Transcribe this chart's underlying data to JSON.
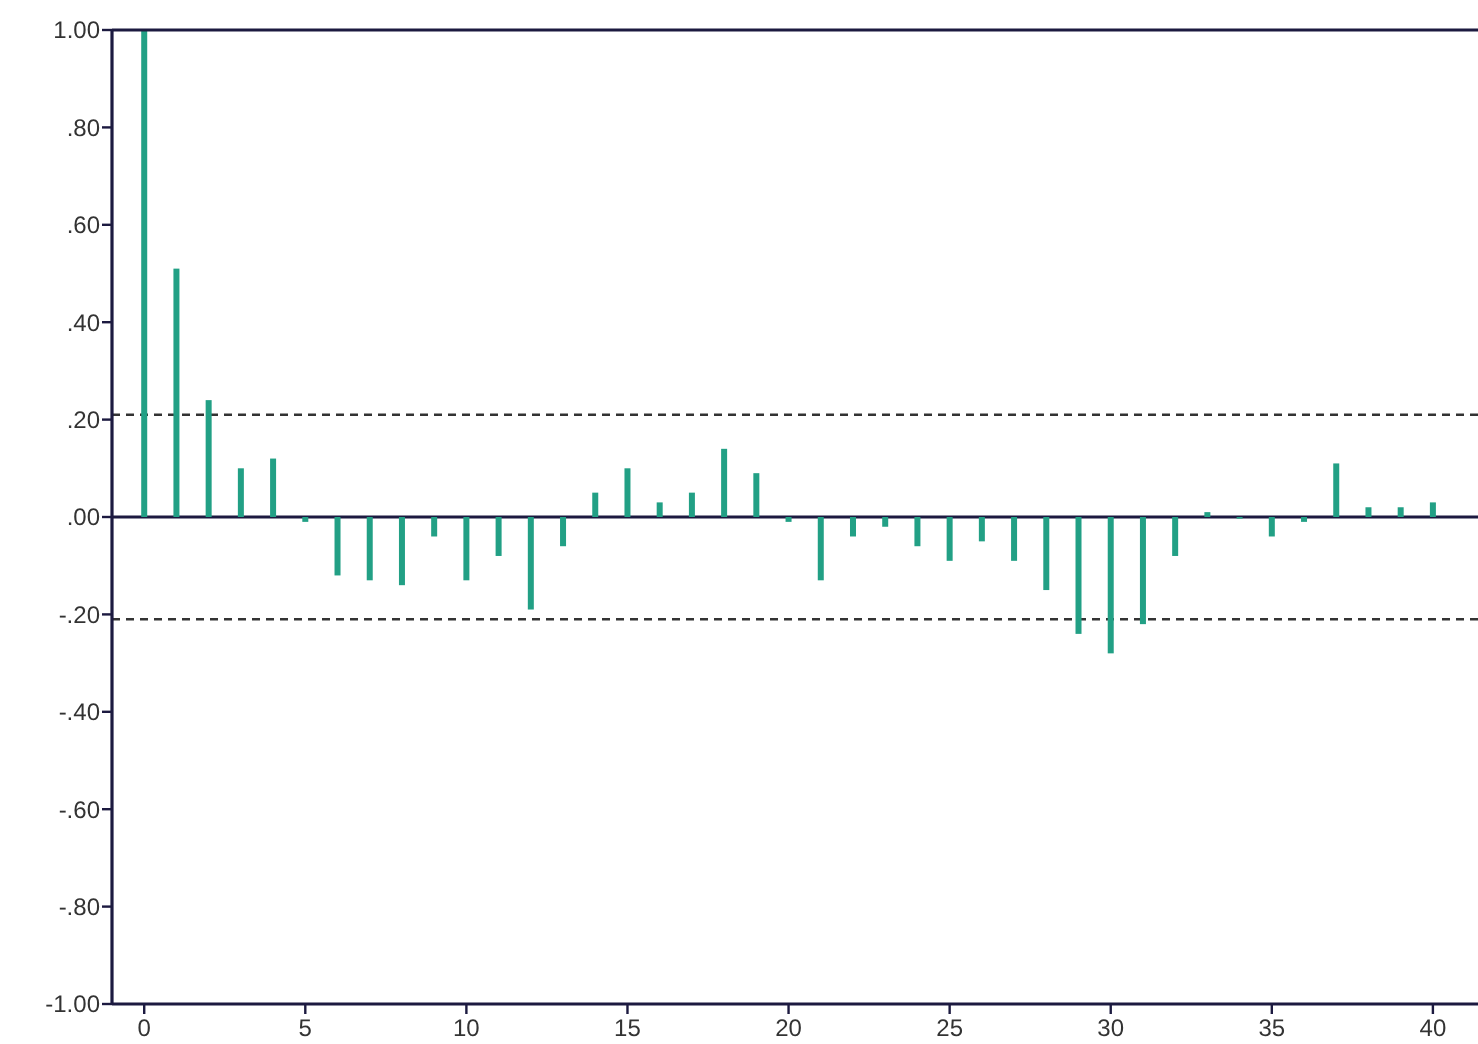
{
  "chart_data": {
    "type": "bar",
    "x": [
      0,
      1,
      2,
      3,
      4,
      5,
      6,
      7,
      8,
      9,
      10,
      11,
      12,
      13,
      14,
      15,
      16,
      17,
      18,
      19,
      20,
      21,
      22,
      23,
      24,
      25,
      26,
      27,
      28,
      29,
      30,
      31,
      32,
      33,
      34,
      35,
      36,
      37,
      38,
      39,
      40
    ],
    "values": [
      1.0,
      0.51,
      0.24,
      0.1,
      0.12,
      -0.01,
      -0.12,
      -0.13,
      -0.14,
      -0.04,
      -0.13,
      -0.08,
      -0.19,
      -0.06,
      0.05,
      0.1,
      0.03,
      0.05,
      0.14,
      0.09,
      -0.01,
      -0.13,
      -0.04,
      -0.02,
      -0.06,
      -0.09,
      -0.05,
      -0.09,
      -0.15,
      -0.24,
      -0.28,
      -0.22,
      -0.08,
      0.01,
      0,
      -0.04,
      -0.01,
      0.11,
      0.02,
      0.02,
      0.03
    ],
    "color": "#22a085",
    "xlim": [
      -1,
      41.4
    ],
    "xticks": [
      0,
      5,
      10,
      15,
      20,
      25,
      30,
      35,
      40
    ],
    "ylim": [
      -1,
      1
    ],
    "yticks": [
      {
        "value": -1,
        "label": "-1.00"
      },
      {
        "value": -0.8,
        "label": "-.80"
      },
      {
        "value": -0.6,
        "label": "-.60"
      },
      {
        "value": -0.4,
        "label": "-.40"
      },
      {
        "value": -0.2,
        "label": "-.20"
      },
      {
        "value": 0,
        "label": ".00"
      },
      {
        "value": 0.2,
        "label": ".20"
      },
      {
        "value": 0.4,
        "label": ".40"
      },
      {
        "value": 0.6,
        "label": ".60"
      },
      {
        "value": 0.8,
        "label": ".80"
      },
      {
        "value": 1,
        "label": "1.00"
      }
    ],
    "ref_lines": [
      {
        "axis": "y",
        "value": 0,
        "color": "#1c1a40",
        "line_style": "solid"
      },
      {
        "axis": "y",
        "value": 0.21,
        "color": "#333333",
        "line_style": "dashed"
      },
      {
        "axis": "y",
        "value": -0.21,
        "color": "#333333",
        "line_style": "dashed"
      }
    ]
  }
}
